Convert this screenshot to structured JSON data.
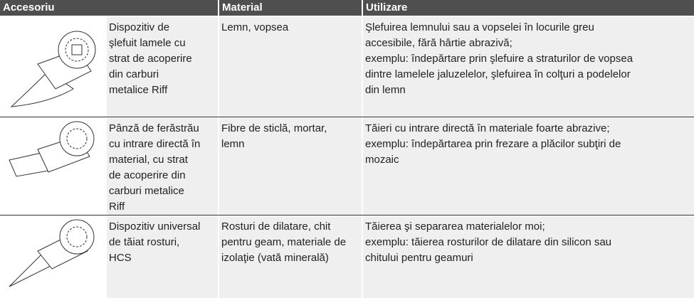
{
  "table": {
    "header": [
      "Accesoriu",
      "Material",
      "Utilizare"
    ],
    "rows": [
      {
        "name": [
          "Dispozitiv de",
          "şlefuit lamele cu",
          "strat de acoperire",
          "din carburi",
          "metalice Riff"
        ],
        "material": [
          "Lemn, vopsea"
        ],
        "usage": [
          "Şlefuirea lemnului sau a vopselei în locurile greu",
          "accesibile, fără hârtie abrazivă;",
          "exemplu: îndepărtare prin şlefuire a straturilor de vopsea",
          "dintre lamelele jaluzelelor, şlefuirea în colţuri a podelelor",
          "din lemn"
        ]
      },
      {
        "name": [
          "Pânză de ferăstrău",
          "cu intrare directă în",
          "material, cu strat",
          "de acoperire din",
          "carburi metalice",
          "Riff"
        ],
        "material": [
          "Fibre de sticlă, mortar,",
          "lemn"
        ],
        "usage": [
          "Tăieri cu intrare directă în materiale foarte abrazive;",
          "exemplu: îndepărtarea prin frezare a plăcilor subţiri de",
          "mozaic"
        ]
      },
      {
        "name": [
          "Dispozitiv universal",
          "de tăiat rosturi,",
          "HCS"
        ],
        "material": [
          "Rosturi de dilatare, chit",
          "pentru geam, materiale de",
          "izolaţie (vată minerală)"
        ],
        "usage": [
          "Tăierea şi separarea materialelor moi;",
          "exemplu: tăierea rosturilor de dilatare din silicon sau",
          "chitului pentru geamuri"
        ]
      }
    ]
  }
}
